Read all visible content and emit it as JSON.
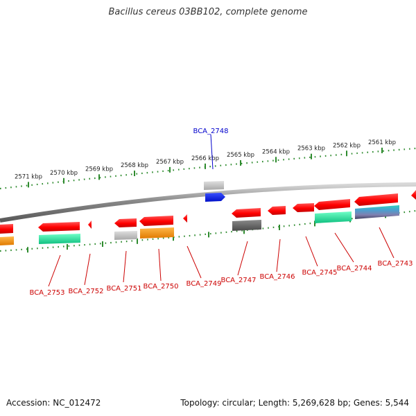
{
  "title": "Bacillus cereus 03BB102, complete genome",
  "footer": {
    "accession": "Accession: NC_012472",
    "summary": "Topology: circular; Length: 5,269,628 bp; Genes: 5,544"
  },
  "colors": {
    "background": "#ffffff",
    "backbone": "#8a8a8a",
    "tick": "#2e8b2e",
    "label_text": "#cc0000",
    "highlight_label": "#0000cc",
    "gene_red": "#ff0000",
    "gene_green": "#20f0a0",
    "gene_gray": "#c0c0c0",
    "gene_dark": "#6a6a6a",
    "gene_orange": "#ff9900",
    "gene_blue": "#0018ff"
  },
  "scale_labels": [
    "2571 kbp",
    "2570 kbp",
    "2569 kbp",
    "2568 kbp",
    "2567 kbp",
    "2566 kbp",
    "2565 kbp",
    "2564 kbp",
    "2563 kbp",
    "2562 kbp",
    "2561 kbp"
  ],
  "gene_labels": [
    "BCA_2753",
    "BCA_2752",
    "BCA_2751",
    "BCA_2750",
    "BCA_2749",
    "BCA_2747",
    "BCA_2746",
    "BCA_2745",
    "BCA_2744",
    "BCA_2743"
  ],
  "highlight_label": "BCA_2748"
}
